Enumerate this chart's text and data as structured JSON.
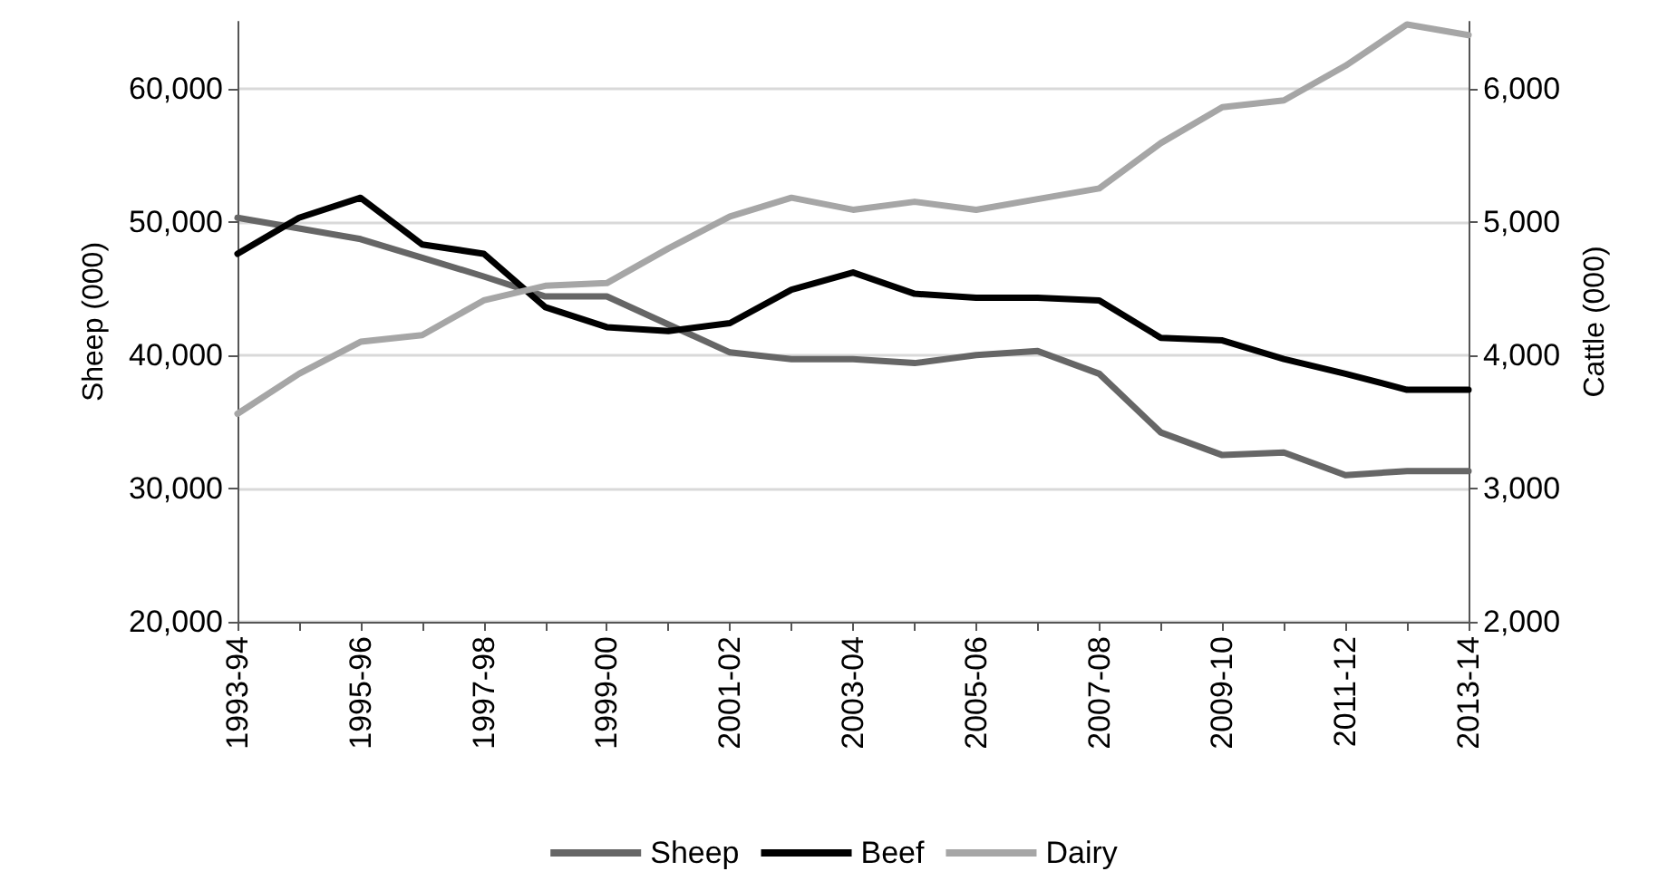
{
  "chart_data": {
    "type": "line",
    "ylabel": "Sheep (000)",
    "y2label": "Cattle (000)",
    "categories": [
      "1993-94",
      null,
      "1995-96",
      null,
      "1997-98",
      null,
      "1999-00",
      null,
      "2001-02",
      null,
      "2003-04",
      null,
      "2005-06",
      null,
      "2007-08",
      null,
      "2009-10",
      null,
      "2011-12",
      null,
      "2013-14"
    ],
    "series": [
      {
        "name": "Sheep",
        "color": "#666666",
        "values": [
          50300,
          49500,
          48700,
          47300,
          45900,
          44400,
          44400,
          42300,
          40200,
          39700,
          39700,
          39400,
          40000,
          40300,
          38600,
          34200,
          32500,
          32700,
          31000,
          31300,
          31300
        ]
      },
      {
        "name": "Beef",
        "color": "#000000",
        "axis": "y2",
        "values": [
          4760,
          5030,
          5180,
          4830,
          4760,
          4360,
          4210,
          4180,
          4240,
          4490,
          4620,
          4460,
          4430,
          4430,
          4410,
          4130,
          4110,
          3970,
          3860,
          3740,
          3740
        ]
      },
      {
        "name": "Dairy",
        "color": "#a6a6a6",
        "axis": "y2",
        "values": [
          3560,
          3860,
          4100,
          4150,
          4410,
          4520,
          4540,
          4800,
          5040,
          5180,
          5090,
          5150,
          5090,
          5170,
          5250,
          5590,
          5860,
          5910,
          6170,
          6480,
          6400
        ]
      }
    ],
    "ylim": [
      20000,
      65000
    ],
    "yticks": [
      {
        "value": 20000,
        "label": "20,000"
      },
      {
        "value": 30000,
        "label": "30,000"
      },
      {
        "value": 40000,
        "label": "40,000"
      },
      {
        "value": 50000,
        "label": "50,000"
      },
      {
        "value": 60000,
        "label": "60,000"
      }
    ],
    "y2lim": [
      2000,
      6500
    ],
    "y2ticks": [
      {
        "value": 2000,
        "label": "2,000"
      },
      {
        "value": 3000,
        "label": "3,000"
      },
      {
        "value": 4000,
        "label": "4,000"
      },
      {
        "value": 5000,
        "label": "5,000"
      },
      {
        "value": 6000,
        "label": "6,000"
      }
    ],
    "grid": "y",
    "legend": "bottom",
    "marker": "none",
    "line_style": "solid"
  }
}
